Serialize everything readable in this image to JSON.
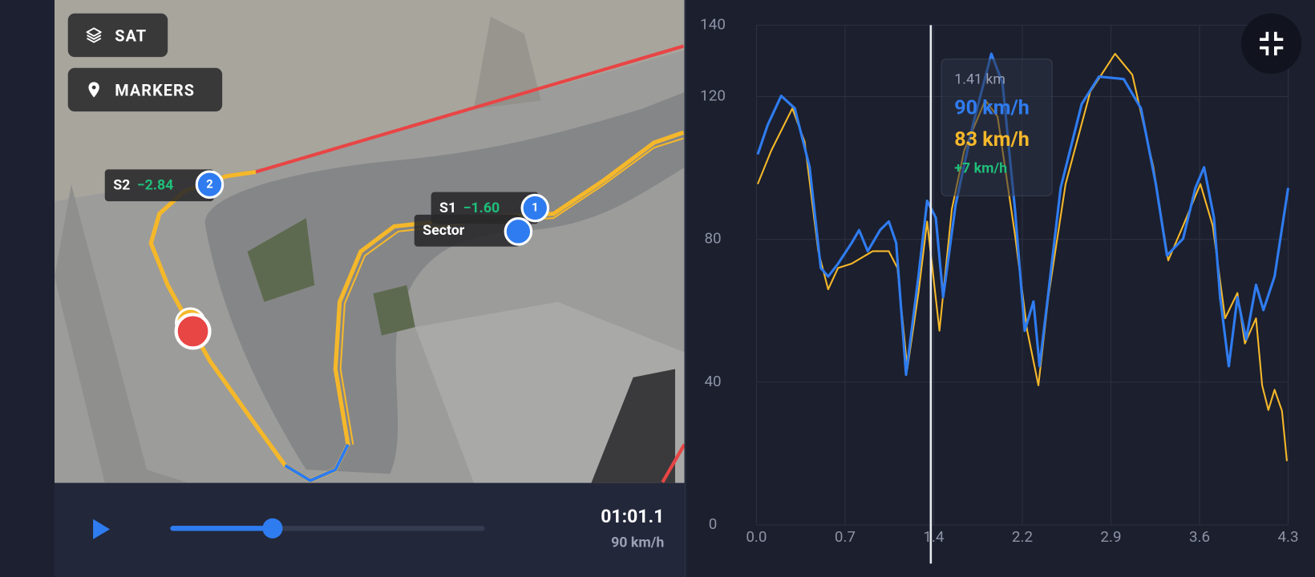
{
  "map": {
    "layer_button": "SAT",
    "markers_button": "MARKERS",
    "sectors": [
      {
        "name": "S2",
        "delta": "−2.84",
        "number": "2"
      },
      {
        "name": "S1",
        "delta": "−1.60",
        "number": "1"
      },
      {
        "name": "Sector"
      }
    ]
  },
  "playback": {
    "time": "01:01.1",
    "speed": "90 km/h"
  },
  "chart_data": {
    "type": "line",
    "grid": true,
    "xlim": [
      0,
      4.3
    ],
    "ylim": [
      0,
      140
    ],
    "xticks": [
      {
        "value": 0,
        "label": "0.0"
      },
      {
        "value": 0.7167,
        "label": "0.7"
      },
      {
        "value": 1.4333,
        "label": "1.4"
      },
      {
        "value": 2.15,
        "label": "2.2"
      },
      {
        "value": 2.8667,
        "label": "2.9"
      },
      {
        "value": 3.5833,
        "label": "3.6"
      },
      {
        "value": 4.3,
        "label": "4.3"
      }
    ],
    "yticks": [
      0,
      40,
      80,
      120,
      140
    ],
    "cursor_x": 1.41,
    "tooltip": {
      "distance": "1.41 km",
      "lines": [
        "90 km/h",
        "83 km/h",
        "+7 km/h"
      ]
    },
    "series": [
      {
        "color": "#2f7cf0",
        "x": [
          0.01,
          0.09,
          0.2,
          0.31,
          0.43,
          0.52,
          0.58,
          0.66,
          0.77,
          0.83,
          0.9,
          1.0,
          1.07,
          1.13,
          1.21,
          1.31,
          1.38,
          1.45,
          1.51,
          1.61,
          1.75,
          1.9,
          1.99,
          2.09,
          2.17,
          2.24,
          2.29,
          2.36,
          2.46,
          2.63,
          2.77,
          2.97,
          3.11,
          3.23,
          3.32,
          3.45,
          3.55,
          3.62,
          3.7,
          3.75,
          3.82,
          3.89,
          3.96,
          4.04,
          4.1,
          4.19,
          4.3
        ],
        "values": [
          103.8,
          112,
          120.2,
          116.7,
          100.2,
          72,
          69.6,
          73.2,
          79,
          82.6,
          76.7,
          82.6,
          85,
          79,
          42.1,
          69.6,
          90.8,
          86.1,
          63.8,
          89.6,
          112,
          132,
          123.8,
          88.5,
          54.4,
          62.6,
          44.5,
          64.9,
          94.4,
          117.9,
          125.6,
          124.9,
          116.7,
          95.5,
          75.5,
          80.2,
          94.4,
          100.2,
          86.1,
          63.8,
          44.5,
          63.8,
          52,
          67.3,
          60.2,
          69.6,
          94.4
        ]
      },
      {
        "color": "#f5b82a",
        "x": [
          0.01,
          0.12,
          0.29,
          0.39,
          0.5,
          0.58,
          0.66,
          0.77,
          0.94,
          1.07,
          1.14,
          1.22,
          1.31,
          1.38,
          1.48,
          1.58,
          1.68,
          1.85,
          1.95,
          2.09,
          2.19,
          2.28,
          2.36,
          2.5,
          2.7,
          2.9,
          3.04,
          3.21,
          3.33,
          3.45,
          3.59,
          3.69,
          3.79,
          3.89,
          3.95,
          4.04,
          4.09,
          4.14,
          4.19,
          4.25,
          4.29
        ],
        "values": [
          95.5,
          104.9,
          116.7,
          107.3,
          76.7,
          66,
          72,
          73.2,
          76.7,
          76.7,
          72,
          43.8,
          64.9,
          85,
          54.4,
          88.5,
          104.9,
          119,
          114.4,
          81.4,
          54.4,
          39.1,
          63.8,
          95.5,
          121.4,
          132,
          126.1,
          100.2,
          74.1,
          83.8,
          95.5,
          83.8,
          57.9,
          65,
          50.8,
          57.9,
          39.1,
          32.2,
          37.9,
          32,
          17.9
        ]
      }
    ]
  }
}
